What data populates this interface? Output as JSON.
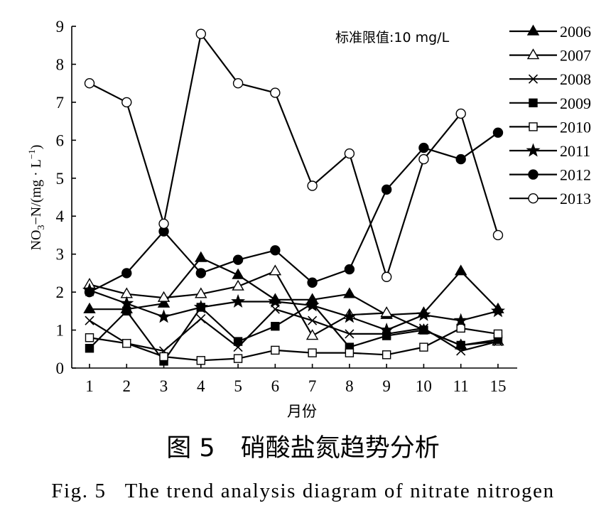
{
  "chart_data": {
    "type": "line",
    "categories": [
      "1",
      "2",
      "3",
      "4",
      "5",
      "6",
      "7",
      "8",
      "9",
      "10",
      "11",
      "15"
    ],
    "xlabel": "月份",
    "ylabel": {
      "main": "NO",
      "sub": "3",
      "mid": "−N/(mg · L",
      "sup": "−1",
      "end": ")"
    },
    "ylim": [
      0,
      9
    ],
    "yticks": [
      0,
      1,
      2,
      3,
      4,
      5,
      6,
      7,
      8,
      9
    ],
    "grid": false,
    "legend_position": "right",
    "annotation": "标准限值:10 mg/L",
    "colors": {
      "series": "#000000",
      "background": "#ffffff"
    },
    "series": [
      {
        "name": "2006",
        "marker": "filled-triangle",
        "values": [
          1.55,
          1.55,
          1.7,
          2.9,
          2.45,
          1.8,
          1.8,
          1.95,
          1.4,
          1.45,
          2.55,
          1.55
        ]
      },
      {
        "name": "2007",
        "marker": "open-triangle",
        "values": [
          2.2,
          1.95,
          1.85,
          1.95,
          2.15,
          2.55,
          0.85,
          1.4,
          1.45,
          1.0,
          0.6,
          0.7
        ]
      },
      {
        "name": "2008",
        "marker": "cross",
        "values": [
          1.25,
          0.65,
          0.45,
          1.3,
          0.55,
          1.55,
          1.25,
          0.9,
          0.9,
          1.05,
          0.45,
          0.7
        ]
      },
      {
        "name": "2009",
        "marker": "filled-square",
        "values": [
          0.52,
          1.5,
          0.18,
          1.6,
          0.7,
          1.1,
          1.7,
          0.55,
          0.85,
          1.0,
          0.6,
          0.75
        ]
      },
      {
        "name": "2010",
        "marker": "open-square",
        "values": [
          0.8,
          0.65,
          0.3,
          0.2,
          0.25,
          0.47,
          0.4,
          0.4,
          0.35,
          0.55,
          1.05,
          0.9
        ]
      },
      {
        "name": "2011",
        "marker": "filled-star",
        "values": [
          2.05,
          1.7,
          1.35,
          1.6,
          1.75,
          1.75,
          1.65,
          1.35,
          1.0,
          1.4,
          1.25,
          1.5
        ]
      },
      {
        "name": "2012",
        "marker": "filled-circle",
        "values": [
          2.0,
          2.5,
          3.6,
          2.5,
          2.85,
          3.1,
          2.25,
          2.6,
          4.7,
          5.8,
          5.5,
          6.2
        ]
      },
      {
        "name": "2013",
        "marker": "open-circle",
        "values": [
          7.5,
          7.0,
          3.8,
          8.8,
          7.5,
          7.25,
          4.8,
          5.65,
          2.4,
          5.5,
          6.7,
          3.5
        ]
      }
    ]
  },
  "caption": {
    "cn_number": "图 5",
    "cn_title": "硝酸盐氮趋势分析",
    "en_number": "Fig. 5",
    "en_title": "The trend analysis diagram of nitrate nitrogen"
  }
}
